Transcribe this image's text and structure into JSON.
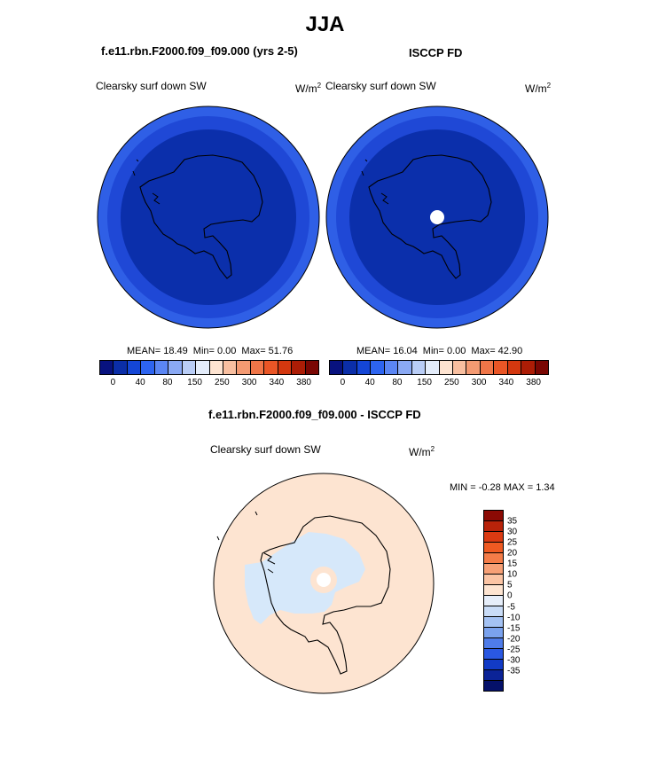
{
  "season_title": "JJA",
  "panels": [
    {
      "title": "f.e11.rbn.F2000.f09_f09.000 (yrs 2-5)",
      "variable": "Clearsky surf down SW",
      "units": "W/m",
      "units_sup": "2",
      "stats": {
        "mean": "MEAN=  18.49",
        "min": "Min=   0.00",
        "max": "Max=  51.76"
      }
    },
    {
      "title": "ISCCP FD",
      "variable": "Clearsky surf down SW",
      "units": "W/m",
      "units_sup": "2",
      "stats": {
        "mean": "MEAN=  16.04",
        "min": "Min=   0.00",
        "max": "Max=  42.90"
      }
    }
  ],
  "colorbar_top": {
    "colors": [
      "#08127f",
      "#0b2ea8",
      "#1446d6",
      "#2d64f0",
      "#5b86f4",
      "#8aa9f4",
      "#b9cdf6",
      "#e3ecfa",
      "#fde3d0",
      "#f8bfa0",
      "#f49a72",
      "#f07648",
      "#ea5626",
      "#d4380f",
      "#ac1d06",
      "#7a0703"
    ],
    "tick_labels": [
      "0",
      "40",
      "80",
      "150",
      "250",
      "300",
      "340",
      "380"
    ]
  },
  "diff_panel": {
    "title": "f.e11.rbn.F2000.f09_f09.000 - ISCCP FD",
    "variable": "Clearsky surf down SW",
    "units": "W/m",
    "units_sup": "2",
    "minmax": "MIN =  -0.28 MAX =   1.34"
  },
  "colorbar_diff": {
    "colors": [
      "#8b0a04",
      "#b8230a",
      "#db3a12",
      "#ef5a22",
      "#f47c48",
      "#f7a076",
      "#fbc4a4",
      "#fde4d1",
      "#e6eefa",
      "#c9dcf7",
      "#a4c2f3",
      "#7aa2ee",
      "#4f7ce9",
      "#2a58e2",
      "#123bc6",
      "#0b2397",
      "#05116a"
    ],
    "labels": [
      "35",
      "30",
      "25",
      "20",
      "15",
      "10",
      "5",
      "0",
      "-5",
      "-10",
      "-15",
      "-20",
      "-25",
      "-30",
      "-35"
    ]
  },
  "colors": {
    "ocean_outer": "#2f5fe6",
    "ocean_ring": "#1f48d6",
    "interior": "#0b2fab",
    "diff_background": "#fde4d1",
    "diff_negative": "#d6e8fa",
    "missing": "#ffffff"
  }
}
